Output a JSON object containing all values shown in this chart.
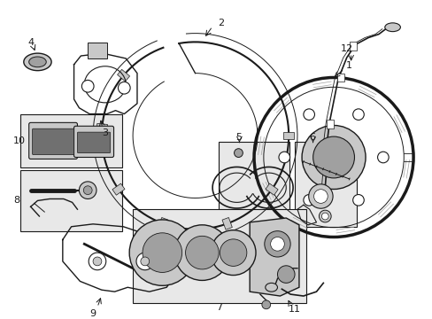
{
  "bg_color": "#ffffff",
  "line_color": "#1a1a1a",
  "gray1": "#c8c8c8",
  "gray2": "#a0a0a0",
  "gray3": "#707070",
  "box_fill": "#e0e0e0",
  "figsize": [
    4.89,
    3.6
  ],
  "dpi": 100
}
